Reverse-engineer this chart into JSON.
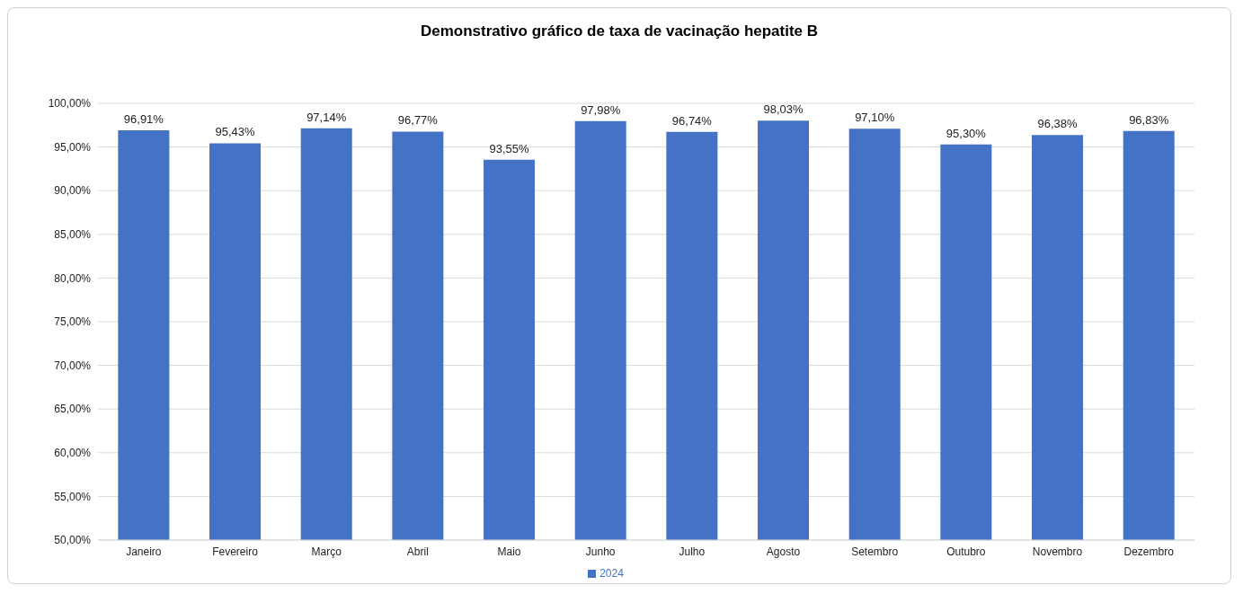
{
  "chart_data": {
    "type": "bar",
    "title": "Demonstrativo gráfico de taxa de vacinação hepatite B",
    "categories": [
      "Janeiro",
      "Fevereiro",
      "Março",
      "Abril",
      "Maio",
      "Junho",
      "Julho",
      "Agosto",
      "Setembro",
      "Outubro",
      "Novembro",
      "Dezembro"
    ],
    "series": [
      {
        "name": "2024",
        "color": "#4472c4",
        "values": [
          96.91,
          95.43,
          97.14,
          96.77,
          93.55,
          97.98,
          96.74,
          98.03,
          97.1,
          95.3,
          96.38,
          96.83
        ],
        "value_labels": [
          "96,91%",
          "95,43%",
          "97,14%",
          "96,77%",
          "93,55%",
          "97,98%",
          "96,74%",
          "98,03%",
          "97,10%",
          "95,30%",
          "96,38%",
          "96,83%"
        ]
      }
    ],
    "ylim": [
      50,
      100
    ],
    "yticks": [
      {
        "value": 50,
        "label": "50,00%"
      },
      {
        "value": 55,
        "label": "55,00%"
      },
      {
        "value": 60,
        "label": "60,00%"
      },
      {
        "value": 65,
        "label": "65,00%"
      },
      {
        "value": 70,
        "label": "70,00%"
      },
      {
        "value": 75,
        "label": "75,00%"
      },
      {
        "value": 80,
        "label": "80,00%"
      },
      {
        "value": 85,
        "label": "85,00%"
      },
      {
        "value": 90,
        "label": "90,00%"
      },
      {
        "value": 95,
        "label": "95,00%"
      },
      {
        "value": 100,
        "label": "100,00%"
      }
    ],
    "grid": "y",
    "legend": "bottom"
  }
}
